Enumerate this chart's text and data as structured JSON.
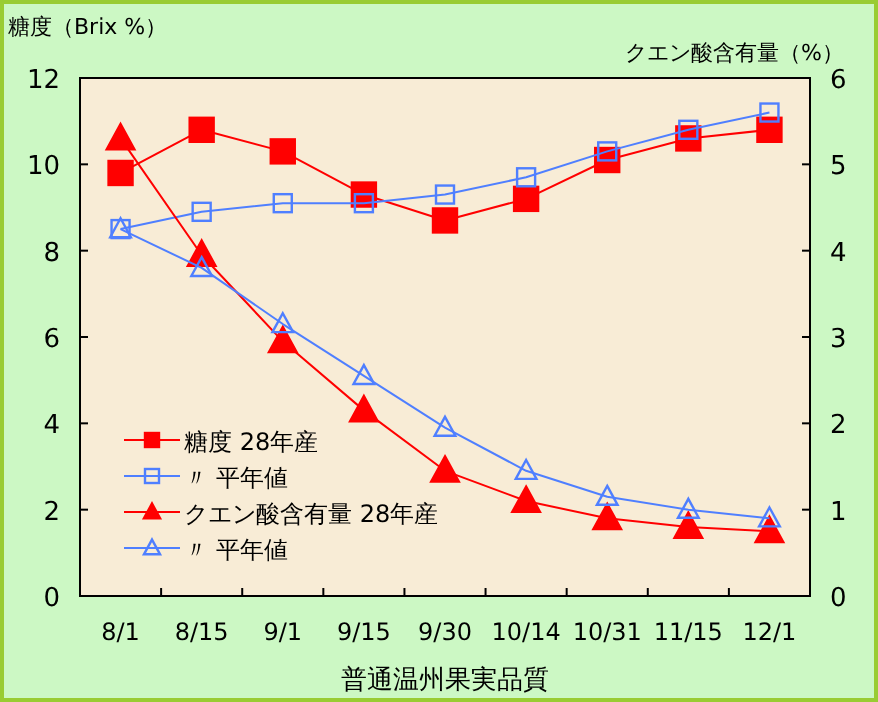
{
  "chart_data": {
    "type": "line",
    "categories": [
      "8/1",
      "8/15",
      "9/1",
      "9/15",
      "9/30",
      "10/14",
      "10/31",
      "11/15",
      "12/1"
    ],
    "series": [
      {
        "name": "糖度  28年産",
        "color": "#ff0000",
        "marker": "square",
        "values": [
          9.8,
          10.8,
          10.3,
          9.3,
          8.7,
          9.2,
          10.1,
          10.6,
          10.8
        ]
      },
      {
        "name": "〃  平年値",
        "color": "#4f7fff",
        "marker": "square",
        "values": [
          8.5,
          8.9,
          9.1,
          9.1,
          9.3,
          9.7,
          10.3,
          10.8,
          11.2
        ]
      },
      {
        "name": "クエン酸含有量  28年産",
        "color": "#ff0000",
        "marker": "triangle",
        "axis": "y2",
        "values": [
          5.3,
          3.95,
          2.95,
          2.15,
          1.45,
          1.1,
          0.9,
          0.8,
          0.75
        ]
      },
      {
        "name": "〃        平年値",
        "color": "#4f7fff",
        "marker": "triangle",
        "axis": "y2",
        "values": [
          4.25,
          3.8,
          3.15,
          2.55,
          1.95,
          1.45,
          1.15,
          1.0,
          0.9
        ]
      }
    ],
    "xlabel": "普通温州果実品質",
    "ylabel": "糖度（Brix %）",
    "y2label": "クエン酸含有量（%）",
    "ylim": [
      0,
      12
    ],
    "yticks": [
      0,
      2,
      4,
      6,
      8,
      10,
      12
    ],
    "y2lim": [
      0,
      6
    ],
    "y2ticks": [
      0,
      1,
      2,
      3,
      4,
      5,
      6
    ],
    "legend": "bottom left",
    "grid": false
  }
}
